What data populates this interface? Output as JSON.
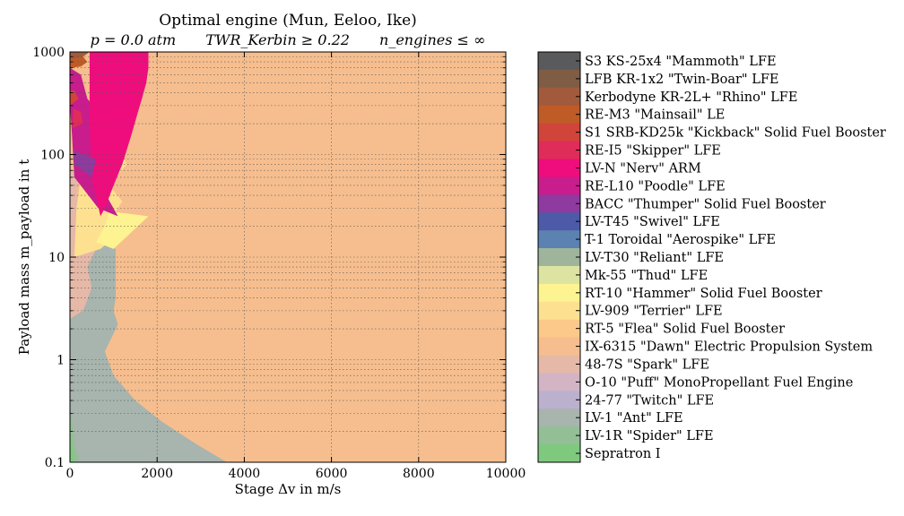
{
  "chart_data": {
    "type": "area",
    "title": "Optimal engine (Mun, Eeloo, Ike)",
    "subtitle_parts": [
      "p = 0.0 atm",
      "TWR_Kerbin ≥ 0.22",
      "n_engines ≤ ∞"
    ],
    "xlabel": "Stage Δv in m/s",
    "ylabel": "Payload mass m_payload in t",
    "xlim": [
      0,
      10000
    ],
    "ylim": [
      0.1,
      1000
    ],
    "yscale": "log",
    "x_ticks": [
      0,
      2000,
      4000,
      6000,
      8000,
      10000
    ],
    "y_ticks": [
      0.1,
      1,
      10,
      100,
      1000
    ],
    "y_tick_labels": [
      "0.1",
      "1",
      "10",
      "100",
      "1000"
    ],
    "grid": true,
    "legend_position": "right",
    "legend": [
      {
        "name": "S3 KS-25x4 \"Mammoth\" LFE",
        "color": "#595a5c"
      },
      {
        "name": "LFB KR-1x2 \"Twin-Boar\" LFE",
        "color": "#7f5d45"
      },
      {
        "name": "Kerbodyne KR-2L+ \"Rhino\" LFE",
        "color": "#a15b3c"
      },
      {
        "name": "RE-M3 \"Mainsail\" LE",
        "color": "#bf5b27"
      },
      {
        "name": "S1 SRB-KD25k \"Kickback\" Solid Fuel Booster",
        "color": "#d0443a"
      },
      {
        "name": "RE-I5 \"Skipper\" LFE",
        "color": "#e02c59"
      },
      {
        "name": "LV-N \"Nerv\" ARM",
        "color": "#ef0d7d"
      },
      {
        "name": "RE-L10 \"Poodle\" LFE",
        "color": "#c91c8d"
      },
      {
        "name": "BACC \"Thumper\" Solid Fuel Booster",
        "color": "#8f3a9e"
      },
      {
        "name": "LV-T45 \"Swivel\" LFE",
        "color": "#4c5aa8"
      },
      {
        "name": "T-1 Toroidal \"Aerospike\" LFE",
        "color": "#5b82b0"
      },
      {
        "name": "LV-T30 \"Reliant\" LFE",
        "color": "#9eb59c"
      },
      {
        "name": "Mk-55 \"Thud\" LFE",
        "color": "#dde3a0"
      },
      {
        "name": "RT-10 \"Hammer\" Solid Fuel Booster",
        "color": "#fdf390"
      },
      {
        "name": "LV-909 \"Terrier\" LFE",
        "color": "#fde190"
      },
      {
        "name": "RT-5 \"Flea\" Solid Fuel Booster",
        "color": "#fcc98a"
      },
      {
        "name": "IX-6315 \"Dawn\" Electric Propulsion System",
        "color": "#f6be8e"
      },
      {
        "name": "48-7S \"Spark\" LFE",
        "color": "#e5b8a8"
      },
      {
        "name": "O-10 \"Puff\" MonoPropellant Fuel Engine",
        "color": "#d3b4c4"
      },
      {
        "name": "24-77 \"Twitch\" LFE",
        "color": "#bcb0cf"
      },
      {
        "name": "LV-1 \"Ant\" LFE",
        "color": "#a8b4ae"
      },
      {
        "name": "LV-1R \"Spider\" LFE",
        "color": "#92bf95"
      },
      {
        "name": "Sepratron I",
        "color": "#7fc97f"
      }
    ],
    "regions": [
      {
        "engine": "IX-6315 \"Dawn\" Electric Propulsion System",
        "color": "#f6be8e",
        "polygon": [
          [
            0,
            0.1
          ],
          [
            10000,
            0.1
          ],
          [
            10000,
            1000
          ],
          [
            0,
            1000
          ]
        ]
      },
      {
        "engine": "LV-1 \"Ant\" LFE",
        "color": "#a8b4ae",
        "polygon": [
          [
            0,
            0.1
          ],
          [
            3600,
            0.1
          ],
          [
            2900,
            0.15
          ],
          [
            2100,
            0.25
          ],
          [
            1500,
            0.4
          ],
          [
            1000,
            0.7
          ],
          [
            800,
            1.2
          ],
          [
            1100,
            2.2
          ],
          [
            1000,
            3
          ],
          [
            1050,
            4
          ],
          [
            1050,
            6
          ],
          [
            1050,
            9
          ],
          [
            1050,
            12
          ],
          [
            700,
            14
          ],
          [
            400,
            16
          ],
          [
            200,
            20
          ],
          [
            0,
            20
          ]
        ]
      },
      {
        "engine": "48-7S \"Spark\" LFE",
        "color": "#e5b8a8",
        "polygon": [
          [
            0,
            2.5
          ],
          [
            300,
            3
          ],
          [
            500,
            5
          ],
          [
            400,
            8
          ],
          [
            600,
            12
          ],
          [
            300,
            15
          ],
          [
            250,
            25
          ],
          [
            150,
            40
          ],
          [
            200,
            60
          ],
          [
            100,
            70
          ],
          [
            0,
            70
          ]
        ]
      },
      {
        "engine": "LV-909 \"Terrier\" LFE",
        "color": "#fde190",
        "polygon": [
          [
            100,
            10
          ],
          [
            700,
            12
          ],
          [
            1050,
            16
          ],
          [
            900,
            22
          ],
          [
            1200,
            35
          ],
          [
            900,
            50
          ],
          [
            1300,
            80
          ],
          [
            1100,
            120
          ],
          [
            900,
            200
          ],
          [
            700,
            300
          ],
          [
            400,
            330
          ],
          [
            200,
            300
          ],
          [
            150,
            150
          ],
          [
            250,
            60
          ],
          [
            150,
            30
          ]
        ]
      },
      {
        "engine": "RT-10 \"Hammer\" Solid Fuel Booster",
        "color": "#fdf390",
        "polygon": [
          [
            600,
            14
          ],
          [
            1000,
            12
          ],
          [
            1800,
            25
          ],
          [
            900,
            28
          ],
          [
            800,
            20
          ]
        ]
      },
      {
        "engine": "RE-L10 \"Poodle\" LFE",
        "color": "#c91c8d",
        "polygon": [
          [
            100,
            60
          ],
          [
            650,
            30
          ],
          [
            1100,
            25
          ],
          [
            600,
            60
          ],
          [
            900,
            90
          ],
          [
            600,
            150
          ],
          [
            700,
            250
          ],
          [
            400,
            350
          ],
          [
            250,
            600
          ],
          [
            0,
            700
          ],
          [
            0,
            300
          ],
          [
            50,
            150
          ]
        ]
      },
      {
        "engine": "LV-N \"Nerv\" ARM",
        "color": "#ef0d7d",
        "polygon": [
          [
            450,
            1000
          ],
          [
            1800,
            1000
          ],
          [
            1800,
            700
          ],
          [
            1750,
            500
          ],
          [
            1650,
            350
          ],
          [
            1550,
            250
          ],
          [
            1400,
            150
          ],
          [
            1200,
            80
          ],
          [
            1000,
            50
          ],
          [
            800,
            30
          ],
          [
            700,
            25
          ],
          [
            500,
            60
          ],
          [
            450,
            200
          ]
        ]
      },
      {
        "engine": "BACC \"Thumper\" Solid Fuel Booster",
        "color": "#8f3a9e",
        "polygon": [
          [
            100,
            80
          ],
          [
            500,
            60
          ],
          [
            600,
            90
          ],
          [
            300,
            100
          ],
          [
            100,
            110
          ]
        ]
      },
      {
        "engine": "RE-I5 \"Skipper\" LFE",
        "color": "#e02c59",
        "polygon": [
          [
            50,
            180
          ],
          [
            300,
            200
          ],
          [
            250,
            260
          ],
          [
            80,
            280
          ]
        ]
      },
      {
        "engine": "S1 SRB-KD25k \"Kickback\" Solid Fuel Booster",
        "color": "#d0443a",
        "polygon": [
          [
            0,
            300
          ],
          [
            200,
            350
          ],
          [
            100,
            420
          ],
          [
            0,
            420
          ]
        ]
      },
      {
        "engine": "RE-M3 \"Mainsail\" LE",
        "color": "#bf5b27",
        "polygon": [
          [
            0,
            700
          ],
          [
            250,
            720
          ],
          [
            400,
            800
          ],
          [
            300,
            900
          ],
          [
            100,
            900
          ],
          [
            0,
            850
          ]
        ]
      },
      {
        "engine": "Kerbodyne KR-2L+ \"Rhino\" LFE",
        "color": "#a15b3c",
        "polygon": [
          [
            0,
            850
          ],
          [
            300,
            900
          ],
          [
            450,
            1000
          ],
          [
            0,
            1000
          ]
        ]
      },
      {
        "engine": "LV-1R \"Spider\" LFE",
        "color": "#92bf95",
        "polygon": [
          [
            0,
            0.1
          ],
          [
            200,
            0.1
          ],
          [
            120,
            0.14
          ],
          [
            80,
            0.2
          ],
          [
            30,
            0.3
          ],
          [
            0,
            0.3
          ]
        ]
      },
      {
        "engine": "Sepratron I",
        "color": "#7fc97f",
        "polygon": [
          [
            0,
            0.1
          ],
          [
            100,
            0.1
          ],
          [
            60,
            0.14
          ],
          [
            0,
            0.18
          ]
        ]
      }
    ]
  }
}
